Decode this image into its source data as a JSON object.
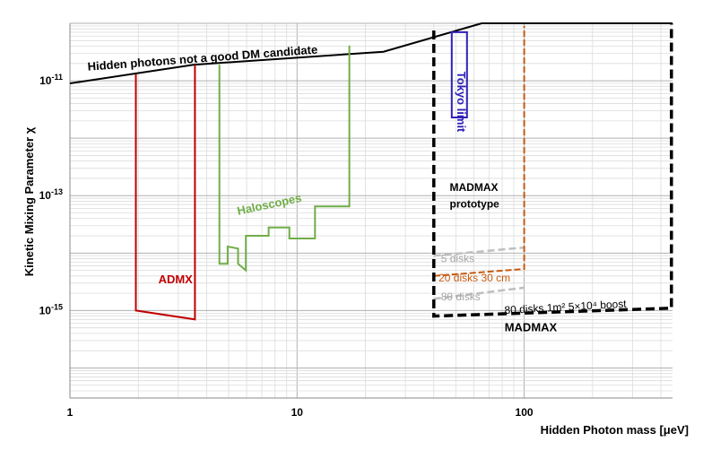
{
  "chart_data": {
    "type": "line",
    "xlabel": "Hidden Photon mass [μeV]",
    "ylabel": "Kinetic Mixing Parameter χ",
    "xscale": "log",
    "yscale": "log",
    "xlim": [
      1,
      450
    ],
    "ylim": [
      3e-17,
      1e-10
    ],
    "grid": true,
    "x_ticks": [
      1,
      10,
      100
    ],
    "x_tick_labels": [
      "1",
      "10",
      "100"
    ],
    "y_ticks": [
      1e-15,
      1e-13,
      1e-11
    ],
    "y_tick_labels": [
      "10-15",
      "10-13",
      "10-11"
    ],
    "colors": {
      "boundary": "#000000",
      "admx": "#c00000",
      "haloscopes": "#70ad47",
      "tokyo": "#2e1fb8",
      "five_disks": "#bfbfbf",
      "twenty_disks": "#c55a11",
      "eighty_disks": "#bfbfbf",
      "madmax": "#000000",
      "grid_major": "#b0b0b0",
      "grid_minor": "#dcdcdc"
    },
    "series": [
      {
        "key": "boundary",
        "style": "solid",
        "x": [
          1,
          3.5,
          24,
          65,
          450
        ],
        "y": [
          9e-12,
          1.9e-11,
          3.2e-11,
          1e-10,
          1e-10
        ]
      },
      {
        "key": "admx",
        "style": "solid",
        "x": [
          1.95,
          1.95,
          3.55,
          3.55
        ],
        "y": [
          1.3e-11,
          1e-15,
          7e-16,
          1.9e-11
        ]
      },
      {
        "key": "haloscopes",
        "style": "solid",
        "x": [
          4.55,
          4.55,
          4.95,
          4.95,
          5.5,
          5.5,
          5.95,
          5.95,
          6.15,
          6.15,
          7.5,
          7.5,
          8.3,
          8.3,
          9.25,
          9.25,
          12.0,
          12.0,
          17.0,
          17.0
        ],
        "y": [
          1.9e-11,
          6.5e-15,
          6.5e-15,
          1.3e-14,
          1.2e-14,
          6.5e-15,
          5e-15,
          2e-14,
          2e-14,
          2e-14,
          2e-14,
          2.8e-14,
          2.8e-14,
          2.8e-14,
          2.8e-14,
          1.8e-14,
          1.8e-14,
          6.5e-14,
          6.5e-14,
          4.1e-11
        ]
      },
      {
        "key": "tokyo",
        "style": "solid",
        "closed": true,
        "x": [
          48,
          56,
          56,
          48
        ],
        "y": [
          2.3e-12,
          2.3e-12,
          7e-11,
          7e-11
        ]
      },
      {
        "key": "five_disks",
        "style": "dashed",
        "x": [
          40,
          100
        ],
        "y": [
          9e-15,
          1.25e-14
        ]
      },
      {
        "key": "twenty_disks",
        "style": "dashed",
        "x": [
          40,
          100,
          100
        ],
        "y": [
          4e-15,
          5.3e-15,
          9e-11
        ]
      },
      {
        "key": "eighty_disks",
        "style": "dashed",
        "x": [
          40,
          100
        ],
        "y": [
          1.6e-15,
          2.5e-15
        ]
      },
      {
        "key": "madmax",
        "style": "dashed",
        "x": [
          40,
          40,
          445,
          445
        ],
        "y": [
          7.5e-11,
          8e-16,
          1.1e-15,
          1e-10
        ]
      }
    ],
    "annotations": [
      {
        "key": "boundary",
        "text": "Hidden photons not a good DM candidate",
        "x": 1.2,
        "y": 1.5e-11,
        "rotate": -4.3,
        "color": "#000000",
        "weight": "bold",
        "size": 13
      },
      {
        "key": "admx",
        "text": "ADMX",
        "x": 2.45,
        "y": 3e-15,
        "rotate": 0,
        "color": "#c00000",
        "weight": "bold",
        "size": 13
      },
      {
        "key": "haloscopes",
        "text": "Haloscopes",
        "x": 5.5,
        "y": 4.6e-14,
        "rotate": -12,
        "color": "#70ad47",
        "weight": "bold",
        "size": 13
      },
      {
        "key": "tokyo",
        "text": "Tokyo limit",
        "x": 50.7,
        "y": 1.45e-11,
        "rotate": 90,
        "color": "#2e1fb8",
        "weight": "bold",
        "size": 13
      },
      {
        "key": "madmax_proto",
        "text": "MADMAX",
        "x": 47,
        "y": 1.2e-13,
        "rotate": 0,
        "color": "#000000",
        "weight": "bold",
        "size": 12
      },
      {
        "key": "madmax_proto2",
        "text": "prototype",
        "x": 47,
        "y": 6.2e-14,
        "rotate": 0,
        "color": "#000000",
        "weight": "bold",
        "size": 12
      },
      {
        "key": "five_disks",
        "text": "5 disks",
        "x": 43,
        "y": 7e-15,
        "rotate": 0,
        "color": "#a6a6a6",
        "weight": "normal",
        "size": 12
      },
      {
        "key": "twenty_disks",
        "text": "20 disks 30 cm",
        "x": 42,
        "y": 3.2e-15,
        "rotate": 0,
        "color": "#c55a11",
        "weight": "normal",
        "size": 12
      },
      {
        "key": "eighty_disks",
        "text": "80 disks",
        "x": 43,
        "y": 1.5e-15,
        "rotate": 0,
        "color": "#a6a6a6",
        "weight": "normal",
        "size": 12
      },
      {
        "key": "eighty_big",
        "text": "80 disks 1m² 5×10⁴ boost",
        "x": 82,
        "y": 8.8e-16,
        "rotate": -3,
        "color": "#000000",
        "weight": "normal",
        "size": 12
      },
      {
        "key": "madmax",
        "text": "MADMAX",
        "x": 82,
        "y": 4.4e-16,
        "rotate": 0,
        "color": "#000000",
        "weight": "bold",
        "size": 13
      }
    ]
  }
}
